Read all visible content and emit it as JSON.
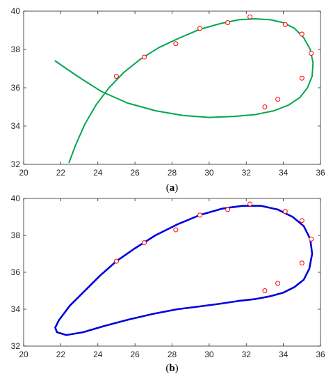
{
  "chart_data": [
    {
      "type": "line",
      "caption": "(a)",
      "caption_letter": "a",
      "xlim": [
        20,
        36
      ],
      "ylim": [
        32,
        40
      ],
      "xticks": [
        20,
        22,
        24,
        26,
        28,
        30,
        32,
        34,
        36
      ],
      "yticks": [
        32,
        34,
        36,
        38,
        40
      ],
      "grid": false,
      "colors": {
        "line": "#00a651",
        "marker": "#ff0000"
      },
      "line": {
        "x": [
          22.45,
          22.8,
          23.3,
          23.9,
          24.6,
          25.4,
          26.3,
          27.3,
          28.4,
          29.5,
          30.6,
          31.6,
          32.5,
          33.3,
          34.0,
          34.6,
          35.1,
          35.45,
          35.6,
          35.55,
          35.3,
          34.9,
          34.3,
          33.5,
          32.5,
          31.3,
          30.0,
          28.6,
          27.1,
          25.6,
          24.2,
          22.9,
          21.7
        ],
        "y": [
          32.1,
          33.0,
          34.1,
          35.1,
          36.0,
          36.8,
          37.5,
          38.1,
          38.6,
          39.05,
          39.35,
          39.55,
          39.6,
          39.55,
          39.4,
          39.1,
          38.6,
          38.0,
          37.3,
          36.6,
          36.0,
          35.5,
          35.1,
          34.8,
          34.6,
          34.5,
          34.45,
          34.55,
          34.8,
          35.2,
          35.8,
          36.6,
          37.4
        ]
      },
      "markers": {
        "x": [
          25.0,
          26.5,
          28.2,
          29.5,
          31.0,
          32.2,
          34.1,
          35.0,
          35.5,
          35.0,
          33.7,
          33.0
        ],
        "y": [
          36.6,
          37.6,
          38.3,
          39.1,
          39.4,
          39.7,
          39.3,
          38.8,
          37.8,
          36.5,
          35.4,
          35.0
        ]
      }
    },
    {
      "type": "line",
      "caption": "(b)",
      "caption_letter": "b",
      "xlim": [
        20,
        36
      ],
      "ylim": [
        32,
        40
      ],
      "xticks": [
        20,
        22,
        24,
        26,
        28,
        30,
        32,
        34,
        36
      ],
      "yticks": [
        32,
        34,
        36,
        38,
        40
      ],
      "grid": false,
      "colors": {
        "line": "#0000dd",
        "marker": "#ff0000"
      },
      "line": {
        "x": [
          21.9,
          22.5,
          23.3,
          24.1,
          25.0,
          26.0,
          27.1,
          28.3,
          29.5,
          30.7,
          31.8,
          32.8,
          33.7,
          34.5,
          35.1,
          35.45,
          35.55,
          35.4,
          35.1,
          34.6,
          34.0,
          33.3,
          32.5,
          31.6,
          30.6,
          29.5,
          28.3,
          27.0,
          25.7,
          24.4,
          23.2,
          22.3,
          21.8,
          21.7,
          21.9
        ],
        "y": [
          33.4,
          34.2,
          35.0,
          35.8,
          36.6,
          37.3,
          38.0,
          38.6,
          39.1,
          39.45,
          39.6,
          39.6,
          39.4,
          39.0,
          38.5,
          37.8,
          37.0,
          36.2,
          35.6,
          35.2,
          34.9,
          34.7,
          34.55,
          34.45,
          34.3,
          34.15,
          34.0,
          33.75,
          33.45,
          33.1,
          32.75,
          32.6,
          32.75,
          33.0,
          33.4
        ]
      },
      "markers": {
        "x": [
          25.0,
          26.5,
          28.2,
          29.5,
          31.0,
          32.2,
          34.1,
          35.0,
          35.5,
          35.0,
          33.7,
          33.0
        ],
        "y": [
          36.6,
          37.6,
          38.3,
          39.1,
          39.4,
          39.7,
          39.3,
          38.8,
          37.8,
          36.5,
          35.4,
          35.0
        ]
      }
    }
  ]
}
